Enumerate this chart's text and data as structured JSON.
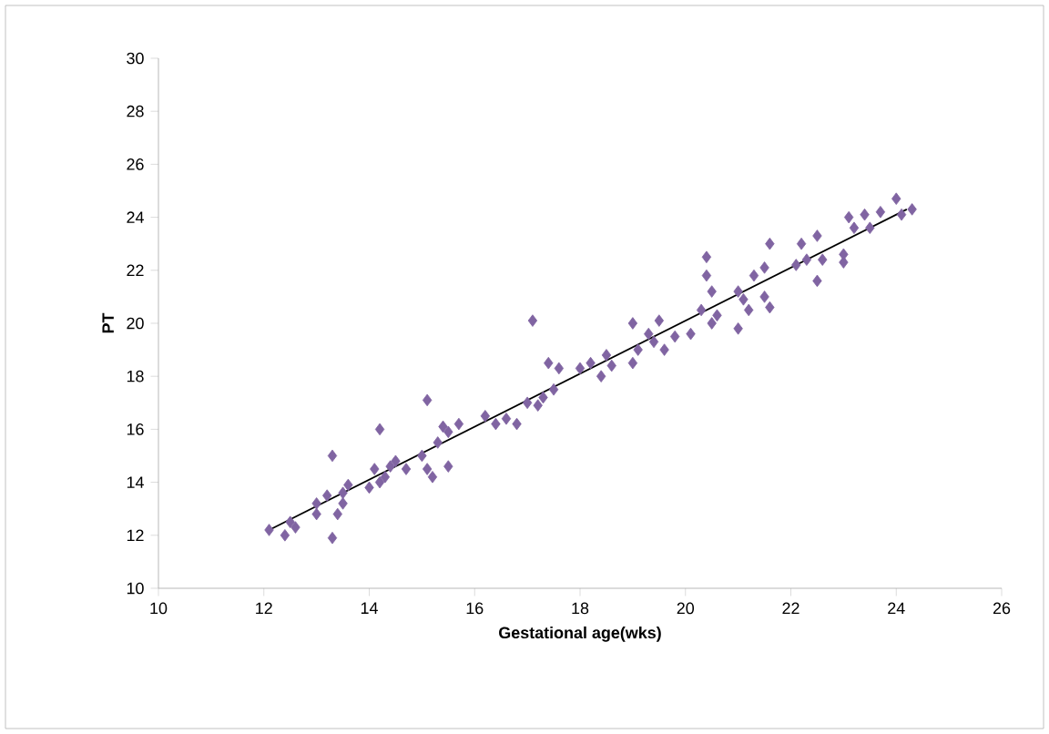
{
  "chart_data": {
    "type": "scatter",
    "xlabel": "Gestational age(wks)",
    "ylabel": "PT",
    "xlim": [
      10,
      26
    ],
    "ylim": [
      10,
      30
    ],
    "xticks": [
      10,
      12,
      14,
      16,
      18,
      20,
      22,
      24,
      26
    ],
    "yticks": [
      10,
      12,
      14,
      16,
      18,
      20,
      22,
      24,
      26,
      28,
      30
    ],
    "marker": "diamond",
    "series": [
      {
        "color": "#8064a2",
        "x": [
          12.1,
          12.4,
          12.5,
          12.6,
          13.0,
          13.0,
          13.2,
          13.3,
          13.3,
          13.4,
          13.5,
          13.6,
          13.5,
          14.0,
          14.1,
          14.2,
          14.2,
          14.4,
          14.5,
          14.3,
          14.7,
          15.0,
          15.1,
          15.1,
          15.2,
          15.3,
          15.4,
          15.5,
          15.5,
          15.7,
          16.2,
          16.4,
          16.6,
          16.8,
          17.0,
          17.1,
          17.2,
          17.3,
          17.4,
          17.5,
          17.6,
          18.0,
          18.2,
          18.4,
          18.5,
          18.6,
          19.0,
          19.1,
          19.0,
          19.3,
          19.4,
          19.5,
          19.6,
          19.8,
          20.1,
          20.3,
          20.4,
          20.4,
          20.5,
          20.5,
          20.6,
          21.0,
          21.0,
          21.1,
          21.2,
          21.3,
          21.5,
          21.5,
          21.6,
          21.6,
          22.1,
          22.2,
          22.3,
          22.5,
          22.5,
          22.6,
          23.0,
          23.0,
          23.1,
          23.2,
          23.4,
          23.5,
          23.7,
          24.0,
          24.1,
          24.3
        ],
        "values": [
          12.2,
          12.0,
          12.5,
          12.3,
          13.2,
          12.8,
          13.5,
          15.0,
          11.9,
          12.8,
          13.6,
          13.9,
          13.2,
          13.8,
          14.5,
          16.0,
          14.0,
          14.6,
          14.8,
          14.2,
          14.5,
          15.0,
          17.1,
          14.5,
          14.2,
          15.5,
          16.1,
          15.9,
          14.6,
          16.2,
          16.5,
          16.2,
          16.4,
          16.2,
          17.0,
          20.1,
          16.9,
          17.2,
          18.5,
          17.5,
          18.3,
          18.3,
          18.5,
          18.0,
          18.8,
          18.4,
          20.0,
          19.0,
          18.5,
          19.6,
          19.3,
          20.1,
          19.0,
          19.5,
          19.6,
          20.5,
          22.5,
          21.8,
          21.2,
          20.0,
          20.3,
          19.8,
          21.2,
          20.9,
          20.5,
          21.8,
          22.1,
          21.0,
          23.0,
          20.6,
          22.2,
          23.0,
          22.4,
          21.6,
          23.3,
          22.4,
          22.3,
          22.6,
          24.0,
          23.6,
          24.1,
          23.6,
          24.2,
          24.7,
          24.1,
          24.3
        ]
      },
      {
        "type": "line",
        "color": "#000000",
        "marker": "none",
        "x": [
          12.1,
          24.2
        ],
        "values": [
          12.2,
          24.3
        ]
      }
    ]
  }
}
